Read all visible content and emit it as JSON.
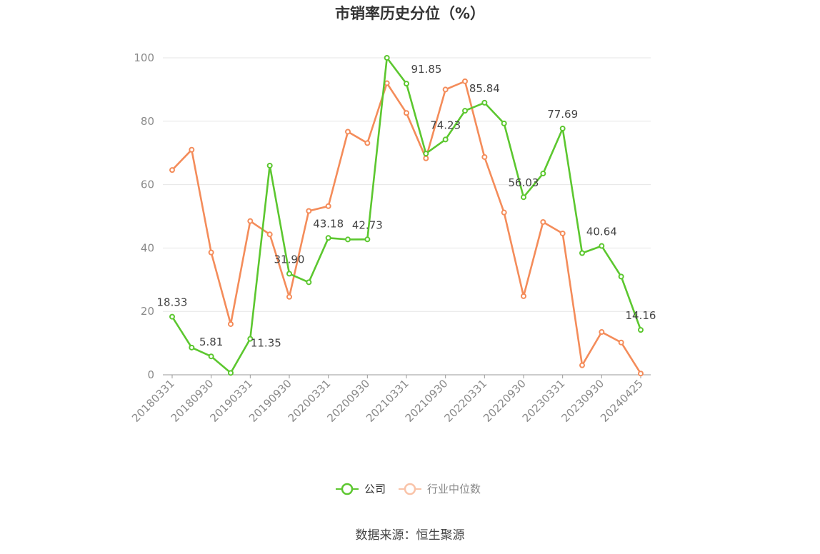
{
  "chart_data": {
    "type": "line",
    "title": "市销率历史分位（%）",
    "x": [
      "20180331",
      "20180630",
      "20180930",
      "20181231",
      "20190331",
      "20190630",
      "20190930",
      "20191231",
      "20200331",
      "20200630",
      "20200930",
      "20201231",
      "20210331",
      "20210630",
      "20210930",
      "20211231",
      "20220331",
      "20220630",
      "20220930",
      "20221231",
      "20230331",
      "20230630",
      "20230930",
      "20231231",
      "20240425"
    ],
    "x_tick_labels": [
      "20180331",
      "20180930",
      "20190331",
      "20190930",
      "20200331",
      "20200930",
      "20210331",
      "20210930",
      "20220331",
      "20220930",
      "20230331",
      "20230930",
      "20240425"
    ],
    "ylim": [
      0,
      100
    ],
    "y_ticks": [
      0,
      20,
      40,
      60,
      80,
      100
    ],
    "grid": true,
    "legend_position": "bottom-center",
    "series": [
      {
        "name": "公司",
        "color": "#5cc72f",
        "values": [
          18.33,
          8.6,
          5.81,
          0.6,
          11.35,
          66.0,
          31.9,
          29.2,
          43.18,
          42.7,
          42.73,
          100.0,
          91.85,
          69.8,
          74.23,
          83.3,
          85.84,
          79.3,
          56.03,
          63.5,
          77.69,
          38.4,
          40.64,
          31.0,
          14.16
        ],
        "data_labels": {
          "0": "18.33",
          "2": "5.81",
          "4": "11.35",
          "6": "31.90",
          "8": "43.18",
          "10": "42.73",
          "12": "91.85",
          "14": "74.23",
          "16": "85.84",
          "18": "56.03",
          "20": "77.69",
          "22": "40.64",
          "24": "14.16"
        }
      },
      {
        "name": "行业中位数",
        "color": "#f48c5a",
        "values": [
          64.6,
          71.0,
          38.6,
          16.0,
          48.5,
          44.3,
          24.6,
          51.7,
          53.2,
          76.7,
          73.1,
          92.0,
          82.6,
          68.3,
          90.0,
          92.6,
          68.7,
          51.2,
          24.8,
          48.2,
          44.6,
          3.0,
          13.5,
          10.2,
          0.4
        ]
      }
    ]
  },
  "legend": [
    {
      "label": "公司",
      "color": "#5cc72f",
      "text_color": "#333333"
    },
    {
      "label": "行业中位数",
      "color": "#f48c5a",
      "text_color": "#888888"
    }
  ],
  "source_text": "数据来源：恒生聚源"
}
